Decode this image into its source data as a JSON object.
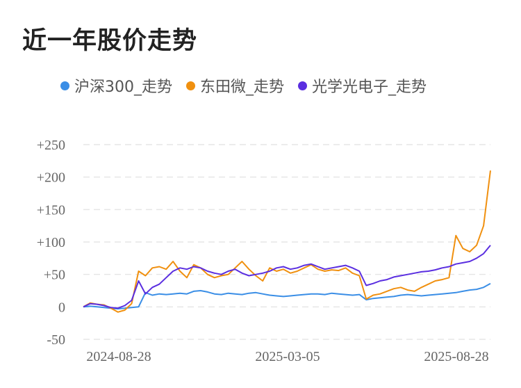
{
  "title": "近一年股价走势",
  "chart_data": {
    "type": "line",
    "title": "近一年股价走势",
    "xlabel": "",
    "ylabel": "",
    "ylim": [
      -50,
      250
    ],
    "y_ticks": [
      "+250",
      "+200",
      "+150",
      "+100",
      "+50",
      "0",
      "-50"
    ],
    "y_tick_values": [
      250,
      200,
      150,
      100,
      50,
      0,
      -50
    ],
    "x_ticks": [
      "2024-08-28",
      "2025-03-05",
      "2025-08-28"
    ],
    "grid": true,
    "legend_position": "top",
    "x_points": 60,
    "series": [
      {
        "name": "沪深300_走势",
        "color": "#3a8ee6",
        "values": [
          0,
          1,
          0,
          -1,
          -2,
          -3,
          -2,
          -1,
          0,
          22,
          18,
          20,
          19,
          20,
          21,
          20,
          24,
          25,
          23,
          20,
          19,
          21,
          20,
          19,
          21,
          22,
          20,
          18,
          17,
          16,
          17,
          18,
          19,
          20,
          20,
          19,
          21,
          20,
          19,
          18,
          19,
          11,
          13,
          14,
          15,
          16,
          18,
          19,
          18,
          17,
          18,
          19,
          20,
          21,
          22,
          24,
          26,
          27,
          30,
          36
        ]
      },
      {
        "name": "东田微_走势",
        "color": "#f0900f",
        "values": [
          0,
          6,
          4,
          3,
          -2,
          -8,
          -5,
          5,
          55,
          48,
          60,
          62,
          58,
          70,
          55,
          45,
          65,
          60,
          50,
          45,
          48,
          50,
          60,
          70,
          58,
          48,
          40,
          60,
          55,
          58,
          52,
          55,
          60,
          65,
          58,
          55,
          57,
          56,
          60,
          52,
          48,
          12,
          18,
          20,
          24,
          28,
          30,
          26,
          24,
          30,
          35,
          40,
          42,
          45,
          110,
          90,
          85,
          95,
          125,
          210
        ]
      },
      {
        "name": "光学光电子_走势",
        "color": "#5a2ee0",
        "values": [
          0,
          5,
          4,
          2,
          -1,
          -2,
          2,
          10,
          40,
          20,
          30,
          35,
          45,
          55,
          60,
          58,
          62,
          60,
          55,
          52,
          50,
          55,
          58,
          52,
          48,
          50,
          52,
          55,
          60,
          62,
          58,
          60,
          64,
          66,
          62,
          58,
          60,
          62,
          64,
          60,
          55,
          33,
          36,
          40,
          42,
          46,
          48,
          50,
          52,
          54,
          55,
          57,
          60,
          62,
          66,
          68,
          70,
          75,
          82,
          95
        ]
      }
    ]
  }
}
